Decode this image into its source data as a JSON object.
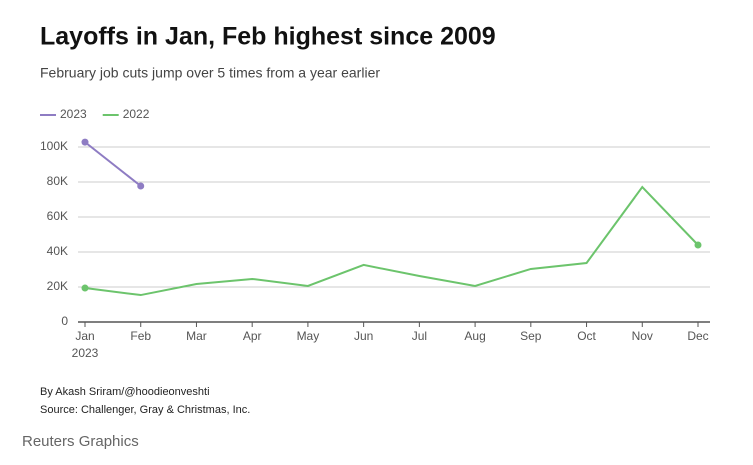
{
  "chart_data": {
    "type": "line",
    "title": "Layoffs in Jan, Feb highest since 2009",
    "subtitle": "February job cuts jump over 5 times from a year earlier",
    "categories": [
      "Jan",
      "Feb",
      "Mar",
      "Apr",
      "May",
      "Jun",
      "Jul",
      "Aug",
      "Sep",
      "Oct",
      "Nov",
      "Dec"
    ],
    "x_sublabel": "2023",
    "series": [
      {
        "name": "2023",
        "color": "#8e7cc3",
        "values": [
          102800,
          77700,
          null,
          null,
          null,
          null,
          null,
          null,
          null,
          null,
          null,
          null
        ]
      },
      {
        "name": "2022",
        "color": "#6cc46c",
        "values": [
          19400,
          15400,
          21700,
          24600,
          20600,
          32600,
          26300,
          20600,
          30300,
          33700,
          77100,
          44000
        ]
      }
    ],
    "ylim": [
      0,
      100000
    ],
    "yticks": [
      0,
      {
        "value": 20000,
        "label": "20K"
      },
      {
        "value": 40000,
        "label": "40K"
      },
      {
        "value": 60000,
        "label": "60K"
      },
      {
        "value": 80000,
        "label": "80K"
      },
      {
        "value": 100000,
        "label": "100K"
      }
    ],
    "grid": true,
    "legend": "top-left",
    "byline": "By Akash Sriram/@hoodieonveshti",
    "source": "Source: Challenger, Gray & Christmas, Inc.",
    "brand": "Reuters Graphics"
  }
}
